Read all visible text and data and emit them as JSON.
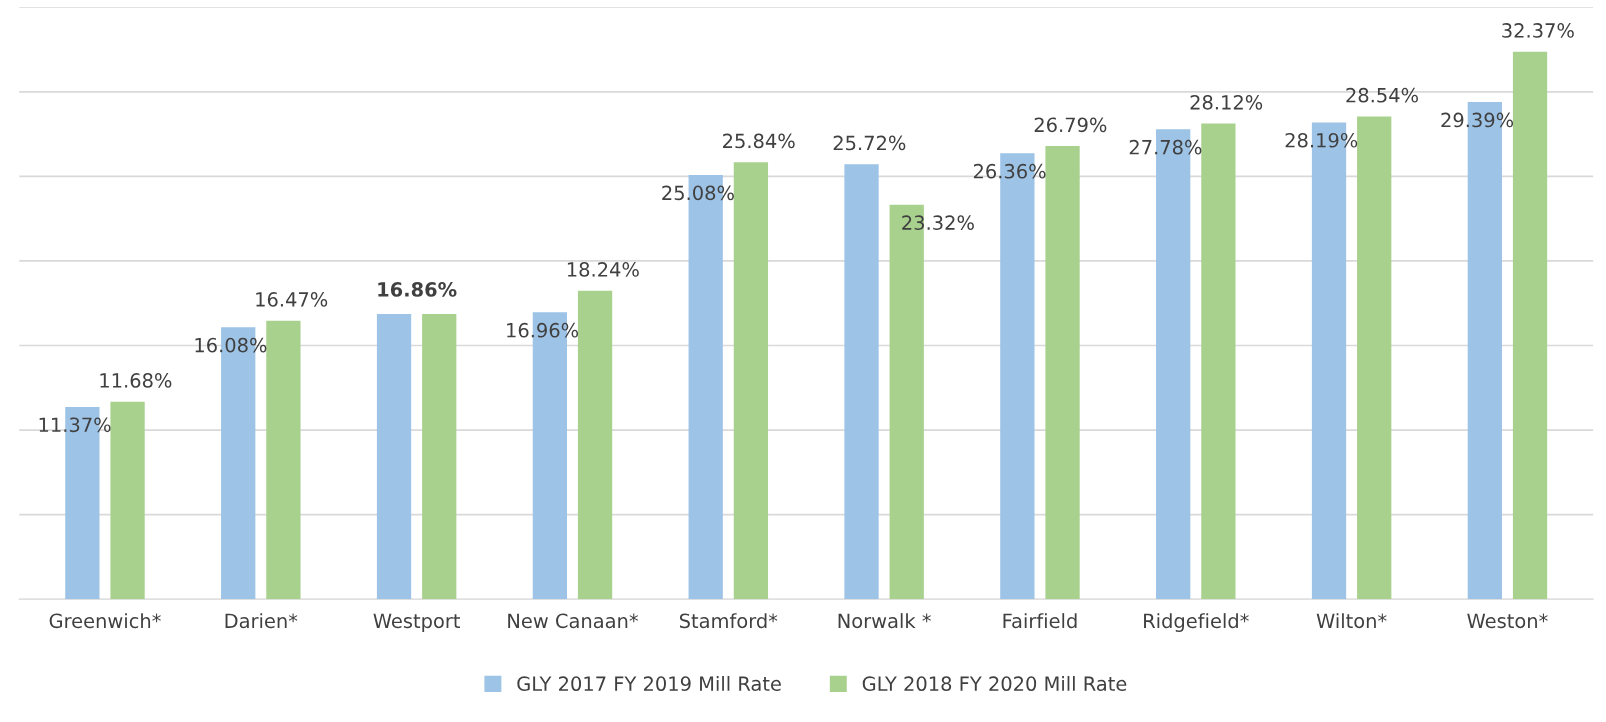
{
  "chart_data": {
    "type": "bar",
    "categories": [
      "Greenwich*",
      "Darien*",
      "Westport",
      "New Canaan*",
      "Stamford*",
      "Norwalk *",
      "Fairfield",
      "Ridgefield*",
      "Wilton*",
      "Weston*"
    ],
    "series": [
      {
        "name": "GLY 2017 FY 2019 Mill Rate",
        "color": "#9dc3e6",
        "values": [
          11.37,
          16.08,
          16.86,
          16.96,
          25.08,
          25.72,
          26.36,
          27.78,
          28.19,
          29.39
        ],
        "value_labels": [
          "11.37%",
          "16.08%",
          "16.86%",
          "16.96%",
          "25.08%",
          "25.72%",
          "26.36%",
          "27.78%",
          "28.19%",
          "29.39%"
        ]
      },
      {
        "name": "GLY 2018 FY 2020 Mill Rate",
        "color": "#a9d18e",
        "values": [
          11.68,
          16.47,
          16.86,
          18.24,
          25.84,
          23.32,
          26.79,
          28.12,
          28.54,
          32.37
        ],
        "value_labels": [
          "11.68%",
          "16.47%",
          null,
          "18.24%",
          "25.84%",
          "23.32%",
          "26.79%",
          "28.12%",
          "28.54%",
          "32.37%"
        ]
      }
    ],
    "ylim": [
      0,
      35
    ],
    "yticks": [
      {
        "value": 0,
        "label": null
      },
      {
        "value": 5,
        "label": null
      },
      {
        "value": 10,
        "label": null
      },
      {
        "value": 15,
        "label": null
      },
      {
        "value": 20,
        "label": null
      },
      {
        "value": 25,
        "label": null
      },
      {
        "value": 30,
        "label": null
      },
      {
        "value": 35,
        "label": null
      }
    ],
    "tick_labels": "x",
    "grid": "y",
    "legend": "bottom"
  }
}
